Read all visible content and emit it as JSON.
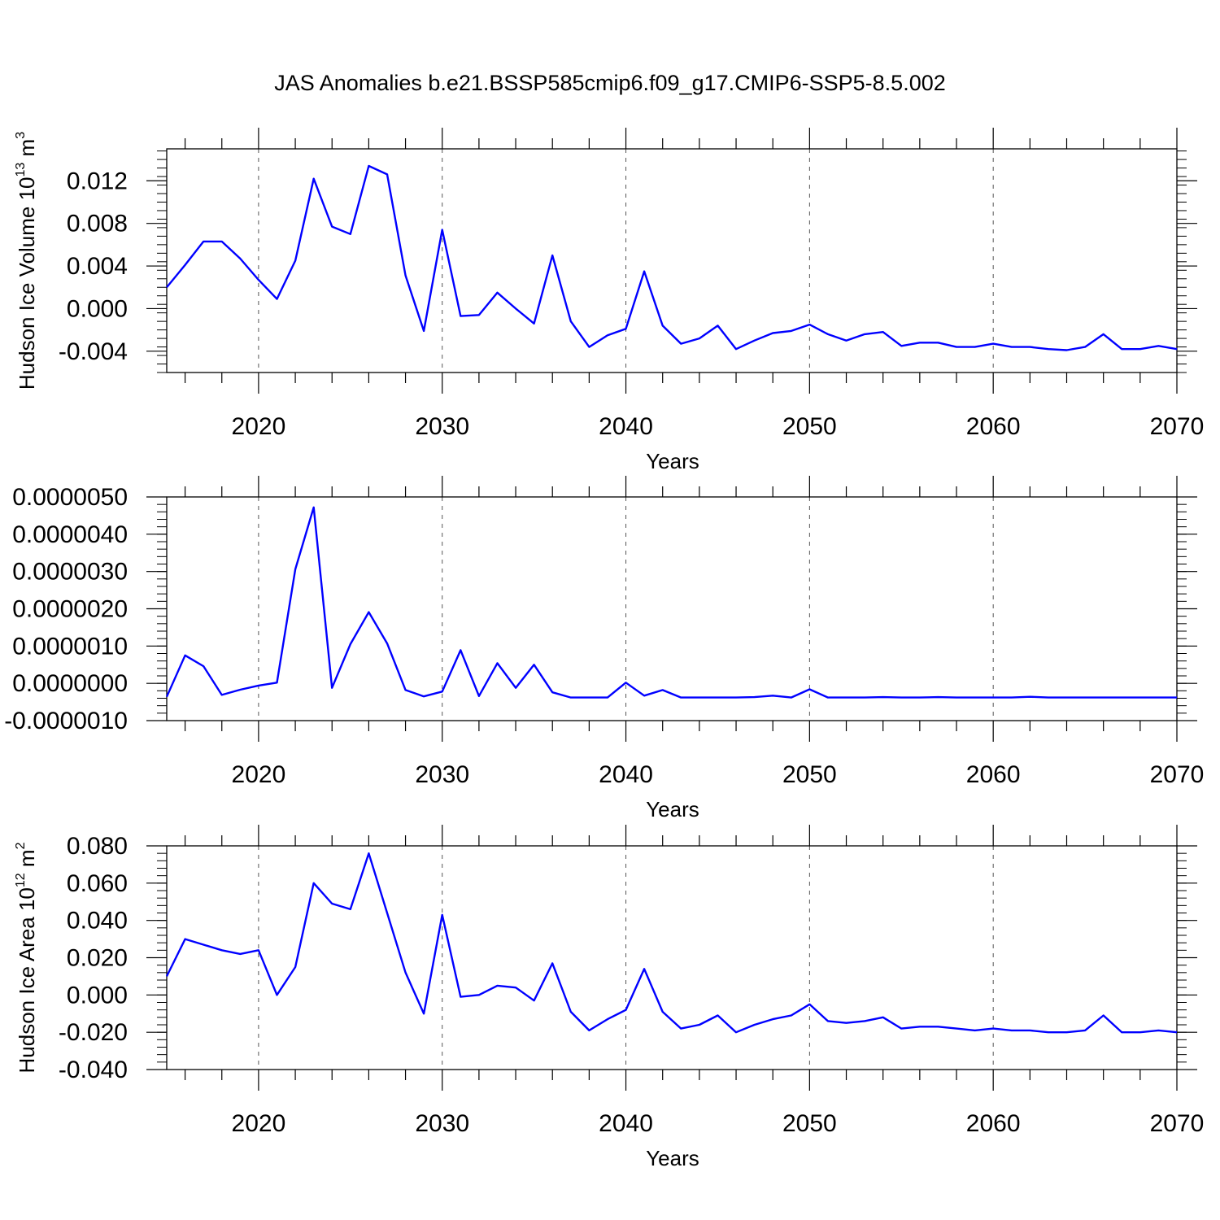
{
  "title": "JAS Anomalies b.e21.BSSP585cmip6.f09_g17.CMIP6-SSP5-8.5.002",
  "colors": {
    "line": "#0000ff",
    "axis": "#000000",
    "grid": "#555555"
  },
  "chart_data": [
    {
      "type": "line",
      "ylabel": "Hudson Ice Volume 10",
      "ylabel_exp": "13",
      "ylabel_unit": " m",
      "ylabel_unit_exp": "3",
      "xlabel": "Years",
      "xlim": [
        2015,
        2070
      ],
      "ylim": [
        -0.006,
        0.015
      ],
      "xticks": [
        2020,
        2030,
        2040,
        2050,
        2060,
        2070
      ],
      "ytick_values": [
        -0.004,
        0.0,
        0.004,
        0.008,
        0.012
      ],
      "ytick_labels": [
        "-0.004",
        "0.000",
        "0.004",
        "0.008",
        "0.012"
      ],
      "grid": "vertical dashed at major x ticks",
      "series": [
        {
          "x": [
            2015,
            2016,
            2017,
            2018,
            2019,
            2020,
            2021,
            2022,
            2023,
            2024,
            2025,
            2026,
            2027,
            2028,
            2029,
            2030,
            2031,
            2032,
            2033,
            2034,
            2035,
            2036,
            2037,
            2038,
            2039,
            2040,
            2041,
            2042,
            2043,
            2044,
            2045,
            2046,
            2047,
            2048,
            2049,
            2050,
            2051,
            2052,
            2053,
            2054,
            2055,
            2056,
            2057,
            2058,
            2059,
            2060,
            2061,
            2062,
            2063,
            2064,
            2065,
            2066,
            2067,
            2068,
            2069,
            2070
          ],
          "values": [
            0.002,
            0.0041,
            0.0063,
            0.0063,
            0.0047,
            0.0027,
            0.0009,
            0.0045,
            0.0122,
            0.0077,
            0.007,
            0.0134,
            0.0126,
            0.0031,
            -0.0021,
            0.0074,
            -0.0007,
            -0.0006,
            0.0015,
            0.0,
            -0.0014,
            0.005,
            -0.0012,
            -0.0036,
            -0.0025,
            -0.0019,
            0.0035,
            -0.0016,
            -0.0033,
            -0.0028,
            -0.0016,
            -0.0038,
            -0.003,
            -0.0023,
            -0.0021,
            -0.0015,
            -0.0024,
            -0.003,
            -0.0024,
            -0.0022,
            -0.0035,
            -0.0032,
            -0.0032,
            -0.0036,
            -0.0036,
            -0.0033,
            -0.0036,
            -0.0036,
            -0.0038,
            -0.0039,
            -0.0036,
            -0.0024,
            -0.0038,
            -0.0038,
            -0.0035,
            -0.0038
          ]
        }
      ]
    },
    {
      "type": "line",
      "ylabel": "",
      "xlabel": "Years",
      "xlim": [
        2015,
        2070
      ],
      "ylim": [
        -1e-06,
        5e-06
      ],
      "xticks": [
        2020,
        2030,
        2040,
        2050,
        2060,
        2070
      ],
      "ytick_values": [
        -1e-06,
        0.0,
        1e-06,
        2e-06,
        3e-06,
        4e-06,
        5e-06
      ],
      "ytick_labels": [
        "-0.0000010",
        "0.0000000",
        "0.0000010",
        "0.0000020",
        "0.0000030",
        "0.0000040",
        "0.0000050"
      ],
      "grid": "vertical dashed at major x ticks",
      "series": [
        {
          "x": [
            2015,
            2016,
            2017,
            2018,
            2019,
            2020,
            2021,
            2022,
            2023,
            2024,
            2025,
            2026,
            2027,
            2028,
            2029,
            2030,
            2031,
            2032,
            2033,
            2034,
            2035,
            2036,
            2037,
            2038,
            2039,
            2040,
            2041,
            2042,
            2043,
            2044,
            2045,
            2046,
            2047,
            2048,
            2049,
            2050,
            2051,
            2052,
            2053,
            2054,
            2055,
            2056,
            2057,
            2058,
            2059,
            2060,
            2061,
            2062,
            2063,
            2064,
            2065,
            2066,
            2067,
            2068,
            2069,
            2070
          ],
          "values": [
            -3.6e-07,
            7.5e-07,
            4.6e-07,
            -3.1e-07,
            -1.7e-07,
            -6e-08,
            2e-08,
            3.06e-06,
            4.72e-06,
            -1.2e-07,
            1.05e-06,
            1.91e-06,
            1.07e-06,
            -1.8e-07,
            -3.5e-07,
            -2.2e-07,
            8.9e-07,
            -3.4e-07,
            5.4e-07,
            -1.2e-07,
            5e-07,
            -2.4e-07,
            -3.8e-07,
            -3.8e-07,
            -3.8e-07,
            2e-08,
            -3.3e-07,
            -1.8e-07,
            -3.8e-07,
            -3.8e-07,
            -3.8e-07,
            -3.8e-07,
            -3.7e-07,
            -3.3e-07,
            -3.8e-07,
            -1.6e-07,
            -3.8e-07,
            -3.8e-07,
            -3.8e-07,
            -3.7e-07,
            -3.8e-07,
            -3.8e-07,
            -3.7e-07,
            -3.8e-07,
            -3.8e-07,
            -3.8e-07,
            -3.8e-07,
            -3.6e-07,
            -3.8e-07,
            -3.8e-07,
            -3.8e-07,
            -3.8e-07,
            -3.8e-07,
            -3.8e-07,
            -3.8e-07,
            -3.8e-07
          ]
        }
      ]
    },
    {
      "type": "line",
      "ylabel": "Hudson Ice Area 10",
      "ylabel_exp": "12",
      "ylabel_unit": " m",
      "ylabel_unit_exp": "2",
      "xlabel": "Years",
      "xlim": [
        2015,
        2070
      ],
      "ylim": [
        -0.04,
        0.08
      ],
      "xticks": [
        2020,
        2030,
        2040,
        2050,
        2060,
        2070
      ],
      "ytick_values": [
        -0.04,
        -0.02,
        0.0,
        0.02,
        0.04,
        0.06,
        0.08
      ],
      "ytick_labels": [
        "-0.040",
        "-0.020",
        "0.000",
        "0.020",
        "0.040",
        "0.060",
        "0.080"
      ],
      "grid": "vertical dashed at major x ticks",
      "series": [
        {
          "x": [
            2015,
            2016,
            2017,
            2018,
            2019,
            2020,
            2021,
            2022,
            2023,
            2024,
            2025,
            2026,
            2027,
            2028,
            2029,
            2030,
            2031,
            2032,
            2033,
            2034,
            2035,
            2036,
            2037,
            2038,
            2039,
            2040,
            2041,
            2042,
            2043,
            2044,
            2045,
            2046,
            2047,
            2048,
            2049,
            2050,
            2051,
            2052,
            2053,
            2054,
            2055,
            2056,
            2057,
            2058,
            2059,
            2060,
            2061,
            2062,
            2063,
            2064,
            2065,
            2066,
            2067,
            2068,
            2069,
            2070
          ],
          "values": [
            0.01,
            0.03,
            0.027,
            0.024,
            0.022,
            0.024,
            0.0,
            0.015,
            0.06,
            0.049,
            0.046,
            0.076,
            0.044,
            0.012,
            -0.01,
            0.043,
            -0.001,
            0.0,
            0.005,
            0.004,
            -0.003,
            0.017,
            -0.009,
            -0.019,
            -0.013,
            -0.008,
            0.014,
            -0.009,
            -0.018,
            -0.016,
            -0.011,
            -0.02,
            -0.016,
            -0.013,
            -0.011,
            -0.005,
            -0.014,
            -0.015,
            -0.014,
            -0.012,
            -0.018,
            -0.017,
            -0.017,
            -0.018,
            -0.019,
            -0.018,
            -0.019,
            -0.019,
            -0.02,
            -0.02,
            -0.019,
            -0.011,
            -0.02,
            -0.02,
            -0.019,
            -0.02
          ]
        }
      ]
    }
  ]
}
